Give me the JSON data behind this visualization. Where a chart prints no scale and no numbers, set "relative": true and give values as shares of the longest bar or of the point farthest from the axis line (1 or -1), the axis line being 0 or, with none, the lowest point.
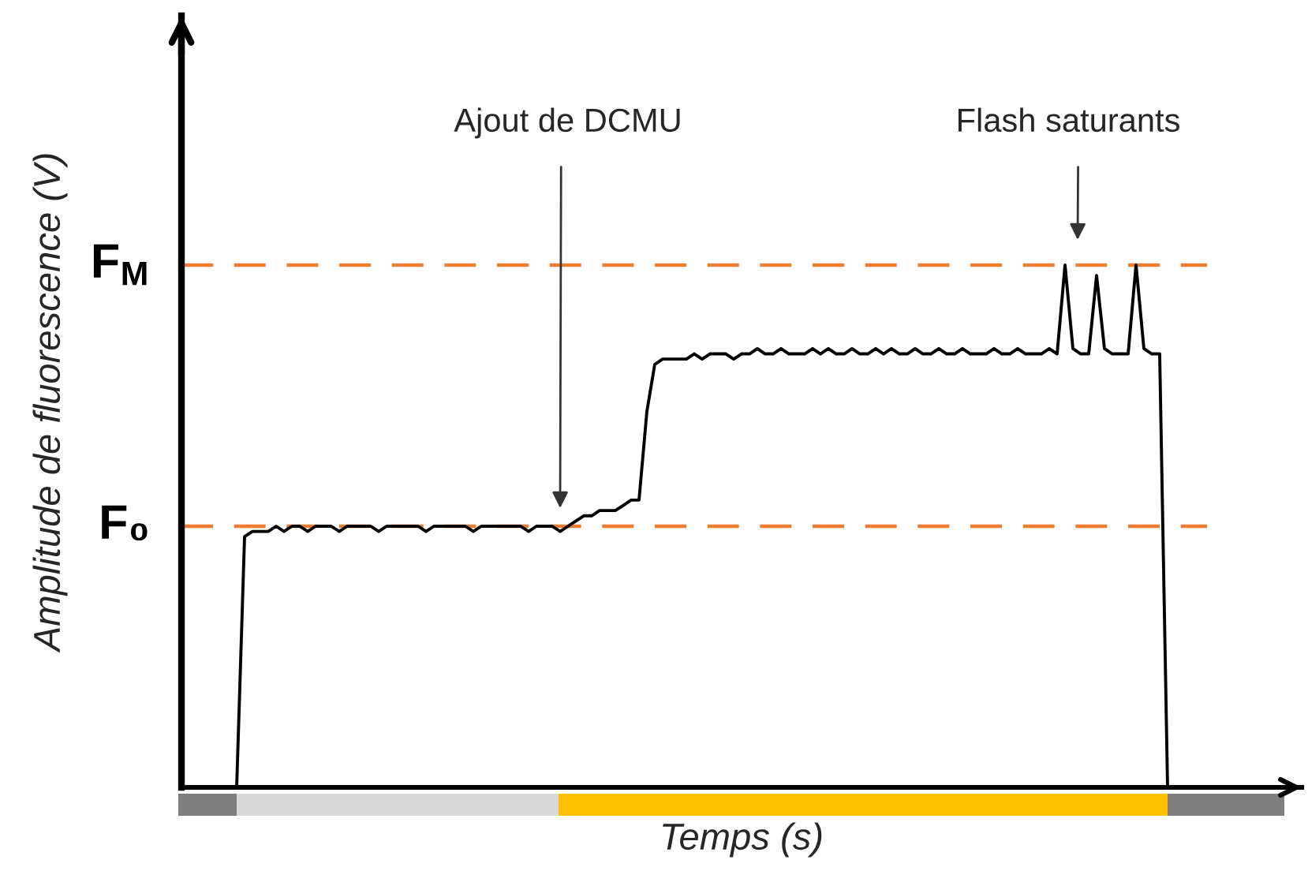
{
  "chart_data": {
    "type": "line",
    "relative": true,
    "xlabel": "Temps (s)",
    "ylabel": "Amplitude de fluorescence (V)",
    "categories": [
      null,
      null,
      null,
      null,
      null,
      null,
      null,
      null,
      null,
      null,
      null,
      null,
      null,
      null,
      null,
      null,
      null,
      null,
      null,
      null,
      null,
      null,
      null,
      null,
      null,
      null,
      null,
      null,
      null,
      null,
      null,
      null,
      null,
      null,
      null,
      null,
      null,
      null,
      null,
      null,
      null,
      null,
      null,
      null,
      null,
      null,
      null,
      null,
      null,
      null,
      null,
      null,
      null,
      null,
      null,
      null,
      null,
      null,
      null,
      null,
      null,
      null,
      null,
      null,
      null,
      null,
      null,
      null,
      null,
      null,
      null,
      null,
      null,
      null,
      null,
      null,
      null,
      null,
      null,
      null,
      null,
      null,
      null,
      null,
      null,
      null,
      null,
      null,
      null,
      null,
      null,
      null,
      null,
      null,
      null,
      null,
      null,
      null,
      null,
      null,
      null,
      null,
      null,
      null,
      null,
      null,
      null,
      null,
      null,
      null,
      null,
      null,
      null,
      null,
      null,
      null,
      null,
      null,
      null,
      null,
      null,
      null,
      null,
      null,
      null,
      null,
      null,
      null,
      null,
      null,
      null,
      null,
      null,
      null,
      null,
      null,
      null,
      null,
      null,
      null,
      null
    ],
    "series": [
      {
        "color": "#000000",
        "values": [
          null,
          null,
          null,
          null,
          null,
          null,
          null,
          0,
          0.48,
          0.49,
          0.49,
          0.49,
          0.5,
          0.49,
          0.5,
          0.5,
          0.49,
          0.5,
          0.5,
          0.5,
          0.49,
          0.5,
          0.5,
          0.5,
          0.5,
          0.49,
          0.5,
          0.5,
          0.5,
          0.5,
          0.5,
          0.49,
          0.5,
          0.5,
          0.5,
          0.5,
          0.5,
          0.49,
          0.5,
          0.5,
          0.5,
          0.5,
          0.5,
          0.5,
          0.49,
          0.5,
          0.5,
          0.5,
          0.49,
          0.5,
          0.51,
          0.52,
          0.52,
          0.53,
          0.53,
          0.53,
          0.54,
          0.55,
          0.55,
          0.72,
          0.81,
          0.82,
          0.82,
          0.82,
          0.82,
          0.83,
          0.82,
          0.83,
          0.83,
          0.83,
          0.82,
          0.83,
          0.83,
          0.84,
          0.83,
          0.83,
          0.84,
          0.83,
          0.83,
          0.83,
          0.84,
          0.83,
          0.84,
          0.83,
          0.83,
          0.84,
          0.83,
          0.83,
          0.84,
          0.83,
          0.84,
          0.83,
          0.83,
          0.84,
          0.83,
          0.83,
          0.84,
          0.83,
          0.83,
          0.84,
          0.83,
          0.83,
          0.83,
          0.84,
          0.83,
          0.83,
          0.84,
          0.83,
          0.83,
          0.83,
          0.84,
          0.83,
          1.0,
          0.84,
          0.83,
          0.83,
          0.98,
          0.84,
          0.83,
          0.83,
          0.83,
          1.0,
          0.84,
          0.83,
          0.83,
          0,
          null,
          null,
          null,
          null,
          null,
          null,
          null,
          null,
          null,
          null,
          null,
          null,
          null,
          null,
          null
        ]
      }
    ],
    "ref_lines": [
      {
        "axis": "y",
        "value": 0.5,
        "label": "F₀",
        "color": "#ed7d31",
        "line_style": "dashed"
      },
      {
        "axis": "y",
        "value": 1.0,
        "label": "F$_{M}$",
        "color": "#ed7d31",
        "line_style": "dashed"
      }
    ],
    "annotations": [
      "Ajout de DCMU",
      "Flash saturants"
    ]
  }
}
